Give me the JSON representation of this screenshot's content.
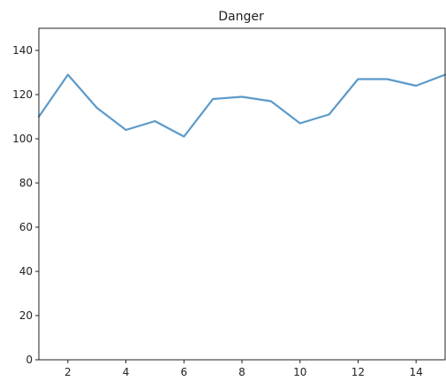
{
  "chart_data": {
    "type": "line",
    "title": "Danger",
    "xlabel": "",
    "ylabel": "",
    "xlim": [
      1,
      15
    ],
    "ylim": [
      0,
      150
    ],
    "xticks": [
      2,
      4,
      6,
      8,
      10,
      12,
      14
    ],
    "yticks": [
      0,
      20,
      40,
      60,
      80,
      100,
      120,
      140
    ],
    "grid": false,
    "line_color": "#5b9ac9",
    "series": [
      {
        "x": [
          1,
          2,
          3,
          4,
          5,
          6,
          7,
          8,
          9,
          10,
          11,
          12,
          13,
          14,
          15
        ],
        "values": [
          110,
          129,
          114,
          104,
          108,
          101,
          118,
          119,
          117,
          107,
          111,
          127,
          127,
          124,
          129
        ]
      }
    ]
  }
}
